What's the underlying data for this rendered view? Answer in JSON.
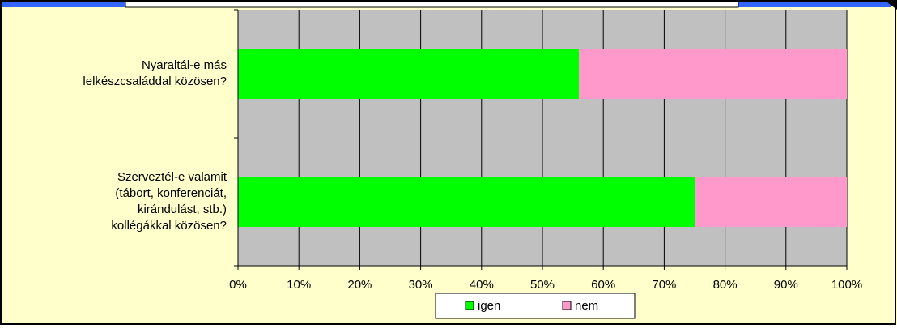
{
  "chart_data": {
    "type": "bar",
    "orientation": "horizontal",
    "stacked": true,
    "categories": [
      "Nyaraltál-e más\nlelkészcsaláddal közösen?",
      "Szerveztél-e valamit\n(tábort, konferenciát,\nkirándulást, stb.)\nkollégákkal közösen?"
    ],
    "series": [
      {
        "name": "igen",
        "color": "#00ff00",
        "values": [
          56,
          75
        ]
      },
      {
        "name": "nem",
        "color": "#ff99cc",
        "values": [
          44,
          25
        ]
      }
    ],
    "xlim": [
      0,
      100
    ],
    "xticks": [
      {
        "value": 0,
        "label": "0%"
      },
      {
        "value": 10,
        "label": "10%"
      },
      {
        "value": 20,
        "label": "20%"
      },
      {
        "value": 30,
        "label": "30%"
      },
      {
        "value": 40,
        "label": "40%"
      },
      {
        "value": 50,
        "label": "50%"
      },
      {
        "value": 60,
        "label": "60%"
      },
      {
        "value": 70,
        "label": "70%"
      },
      {
        "value": 80,
        "label": "80%"
      },
      {
        "value": 90,
        "label": "90%"
      },
      {
        "value": 100,
        "label": "100%"
      }
    ],
    "grid": true,
    "legend": "bottom"
  }
}
